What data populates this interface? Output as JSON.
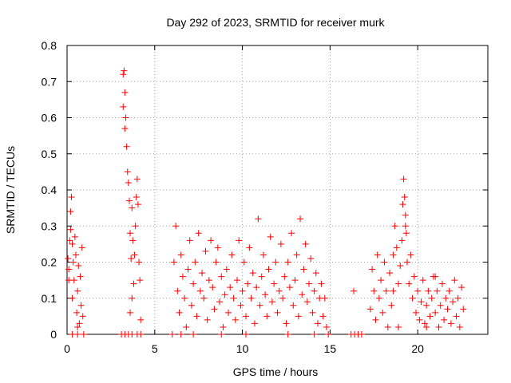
{
  "chart_data": {
    "type": "scatter",
    "title": "Day 292 of 2023, SRMTID for receiver murk",
    "xlabel": "GPS time / hours",
    "ylabel": "SRMTID / TECUs",
    "xlim": [
      0,
      24
    ],
    "ylim": [
      0,
      0.8
    ],
    "x_ticks": [
      0,
      5,
      10,
      15,
      20
    ],
    "x_tick_labels": [
      "0",
      "5",
      "10",
      "15",
      "20"
    ],
    "y_ticks": [
      0,
      0.1,
      0.2,
      0.3,
      0.4,
      0.5,
      0.6,
      0.7,
      0.8
    ],
    "y_tick_labels": [
      "0",
      "0.1",
      "0.2",
      "0.3",
      "0.4",
      "0.5",
      "0.6",
      "0.7",
      "0.8"
    ],
    "grid": true,
    "marker": "+",
    "color": "#ff0000",
    "series": [
      {
        "name": "SRMTID",
        "points": [
          [
            0.05,
            0.21
          ],
          [
            0.1,
            0.18
          ],
          [
            0.15,
            0.26
          ],
          [
            0.2,
            0.34
          ],
          [
            0.25,
            0.38
          ],
          [
            0.3,
            0.25
          ],
          [
            0.35,
            0.2
          ],
          [
            0.4,
            0.15
          ],
          [
            0.45,
            0.27
          ],
          [
            0.5,
            0.22
          ],
          [
            0.55,
            0.06
          ],
          [
            0.6,
            0.12
          ],
          [
            0.65,
            0.19
          ],
          [
            0.7,
            0.03
          ],
          [
            0.75,
            0.16
          ],
          [
            0.8,
            0.08
          ],
          [
            0.85,
            0.24
          ],
          [
            0.9,
            0.05
          ],
          [
            0.2,
            0.29
          ],
          [
            0.1,
            0.15
          ],
          [
            0.3,
            0.1
          ],
          [
            0.6,
            0.02
          ],
          [
            0.95,
            0.0
          ],
          [
            0.3,
            0.0
          ],
          [
            0.6,
            0.0
          ],
          [
            3.1,
            0.0
          ],
          [
            3.2,
            0.72
          ],
          [
            3.25,
            0.73
          ],
          [
            3.3,
            0.67
          ],
          [
            3.35,
            0.6
          ],
          [
            3.4,
            0.52
          ],
          [
            3.45,
            0.45
          ],
          [
            3.5,
            0.42
          ],
          [
            3.55,
            0.37
          ],
          [
            3.6,
            0.28
          ],
          [
            3.65,
            0.21
          ],
          [
            3.7,
            0.35
          ],
          [
            3.75,
            0.26
          ],
          [
            3.8,
            0.14
          ],
          [
            3.85,
            0.22
          ],
          [
            3.9,
            0.3
          ],
          [
            3.95,
            0.38
          ],
          [
            4.0,
            0.43
          ],
          [
            4.05,
            0.36
          ],
          [
            4.1,
            0.2
          ],
          [
            4.15,
            0.15
          ],
          [
            3.6,
            0.06
          ],
          [
            3.7,
            0.1
          ],
          [
            4.2,
            0.04
          ],
          [
            3.3,
            0.57
          ],
          [
            3.2,
            0.63
          ],
          [
            3.3,
            0.0
          ],
          [
            3.5,
            0.0
          ],
          [
            3.7,
            0.0
          ],
          [
            4.0,
            0.0
          ],
          [
            4.2,
            0.0
          ],
          [
            6.0,
            0.0
          ],
          [
            6.1,
            0.2
          ],
          [
            6.2,
            0.3
          ],
          [
            6.3,
            0.12
          ],
          [
            6.4,
            0.06
          ],
          [
            6.5,
            0.22
          ],
          [
            6.6,
            0.16
          ],
          [
            6.7,
            0.1
          ],
          [
            6.8,
            0.02
          ],
          [
            6.9,
            0.18
          ],
          [
            7.0,
            0.26
          ],
          [
            7.1,
            0.08
          ],
          [
            7.2,
            0.14
          ],
          [
            7.3,
            0.2
          ],
          [
            7.4,
            0.05
          ],
          [
            7.5,
            0.28
          ],
          [
            7.6,
            0.12
          ],
          [
            7.7,
            0.17
          ],
          [
            7.8,
            0.1
          ],
          [
            7.9,
            0.23
          ],
          [
            8.0,
            0.04
          ],
          [
            8.1,
            0.15
          ],
          [
            8.2,
            0.26
          ],
          [
            8.3,
            0.13
          ],
          [
            8.4,
            0.07
          ],
          [
            8.5,
            0.2
          ],
          [
            8.6,
            0.24
          ],
          [
            8.7,
            0.09
          ],
          [
            8.8,
            0.16
          ],
          [
            8.9,
            0.02
          ],
          [
            9.0,
            0.11
          ],
          [
            9.1,
            0.18
          ],
          [
            9.2,
            0.06
          ],
          [
            9.3,
            0.13
          ],
          [
            9.4,
            0.22
          ],
          [
            9.5,
            0.1
          ],
          [
            9.6,
            0.04
          ],
          [
            9.7,
            0.15
          ],
          [
            9.8,
            0.26
          ],
          [
            9.9,
            0.08
          ],
          [
            10.0,
            0.12
          ],
          [
            10.1,
            0.2
          ],
          [
            10.2,
            0.05
          ],
          [
            10.3,
            0.14
          ],
          [
            10.4,
            0.24
          ],
          [
            10.5,
            0.1
          ],
          [
            10.6,
            0.17
          ],
          [
            10.7,
            0.03
          ],
          [
            10.8,
            0.13
          ],
          [
            10.9,
            0.32
          ],
          [
            11.0,
            0.08
          ],
          [
            11.1,
            0.16
          ],
          [
            11.2,
            0.22
          ],
          [
            11.3,
            0.11
          ],
          [
            11.4,
            0.05
          ],
          [
            11.5,
            0.18
          ],
          [
            11.6,
            0.27
          ],
          [
            11.7,
            0.09
          ],
          [
            11.8,
            0.14
          ],
          [
            11.9,
            0.2
          ],
          [
            12.0,
            0.06
          ],
          [
            12.1,
            0.12
          ],
          [
            12.2,
            0.25
          ],
          [
            12.3,
            0.1
          ],
          [
            12.4,
            0.16
          ],
          [
            12.5,
            0.03
          ],
          [
            12.6,
            0.2
          ],
          [
            12.7,
            0.13
          ],
          [
            12.8,
            0.28
          ],
          [
            12.9,
            0.08
          ],
          [
            13.0,
            0.15
          ],
          [
            13.1,
            0.22
          ],
          [
            13.2,
            0.05
          ],
          [
            13.3,
            0.32
          ],
          [
            13.4,
            0.11
          ],
          [
            13.5,
            0.18
          ],
          [
            13.6,
            0.25
          ],
          [
            13.7,
            0.09
          ],
          [
            13.8,
            0.14
          ],
          [
            13.9,
            0.21
          ],
          [
            14.0,
            0.06
          ],
          [
            14.1,
            0.12
          ],
          [
            14.2,
            0.17
          ],
          [
            14.3,
            0.03
          ],
          [
            14.4,
            0.1
          ],
          [
            14.5,
            0.14
          ],
          [
            14.6,
            0.05
          ],
          [
            14.7,
            0.1
          ],
          [
            14.8,
            0.02
          ],
          [
            14.9,
            0.0
          ],
          [
            6.5,
            0.0
          ],
          [
            7.2,
            0.0
          ],
          [
            8.8,
            0.0
          ],
          [
            10.2,
            0.0
          ],
          [
            12.6,
            0.0
          ],
          [
            14.1,
            0.0
          ],
          [
            16.2,
            0.0
          ],
          [
            16.4,
            0.0
          ],
          [
            16.6,
            0.0
          ],
          [
            16.8,
            0.0
          ],
          [
            16.35,
            0.12
          ],
          [
            17.3,
            0.07
          ],
          [
            17.4,
            0.18
          ],
          [
            17.5,
            0.12
          ],
          [
            17.6,
            0.04
          ],
          [
            17.7,
            0.22
          ],
          [
            17.8,
            0.1
          ],
          [
            17.9,
            0.15
          ],
          [
            18.0,
            0.06
          ],
          [
            18.1,
            0.2
          ],
          [
            18.2,
            0.12
          ],
          [
            18.3,
            0.02
          ],
          [
            18.4,
            0.17
          ],
          [
            18.5,
            0.08
          ],
          [
            18.6,
            0.22
          ],
          [
            18.7,
            0.3
          ],
          [
            18.8,
            0.24
          ],
          [
            18.9,
            0.14
          ],
          [
            19.0,
            0.19
          ],
          [
            19.1,
            0.26
          ],
          [
            19.15,
            0.36
          ],
          [
            19.2,
            0.43
          ],
          [
            19.25,
            0.38
          ],
          [
            19.3,
            0.33
          ],
          [
            19.35,
            0.28
          ],
          [
            19.4,
            0.2
          ],
          [
            19.5,
            0.14
          ],
          [
            19.6,
            0.22
          ],
          [
            19.7,
            0.1
          ],
          [
            19.8,
            0.16
          ],
          [
            19.9,
            0.06
          ],
          [
            20.0,
            0.12
          ],
          [
            20.1,
            0.04
          ],
          [
            20.2,
            0.09
          ],
          [
            20.3,
            0.15
          ],
          [
            20.4,
            0.03
          ],
          [
            20.5,
            0.08
          ],
          [
            20.6,
            0.12
          ],
          [
            20.7,
            0.05
          ],
          [
            20.8,
            0.1
          ],
          [
            20.9,
            0.16
          ],
          [
            21.0,
            0.06
          ],
          [
            21.1,
            0.12
          ],
          [
            21.2,
            0.02
          ],
          [
            21.3,
            0.08
          ],
          [
            21.4,
            0.14
          ],
          [
            21.5,
            0.04
          ],
          [
            21.6,
            0.1
          ],
          [
            21.7,
            0.07
          ],
          [
            21.8,
            0.12
          ],
          [
            21.9,
            0.03
          ],
          [
            22.0,
            0.09
          ],
          [
            22.1,
            0.15
          ],
          [
            22.2,
            0.05
          ],
          [
            22.3,
            0.1
          ],
          [
            22.4,
            0.02
          ],
          [
            22.5,
            0.13
          ],
          [
            22.6,
            0.07
          ],
          [
            18.9,
            0.02
          ],
          [
            19.3,
            0.3
          ],
          [
            18.6,
            0.12
          ],
          [
            21.0,
            0.16
          ],
          [
            20.5,
            0.02
          ]
        ]
      }
    ]
  }
}
